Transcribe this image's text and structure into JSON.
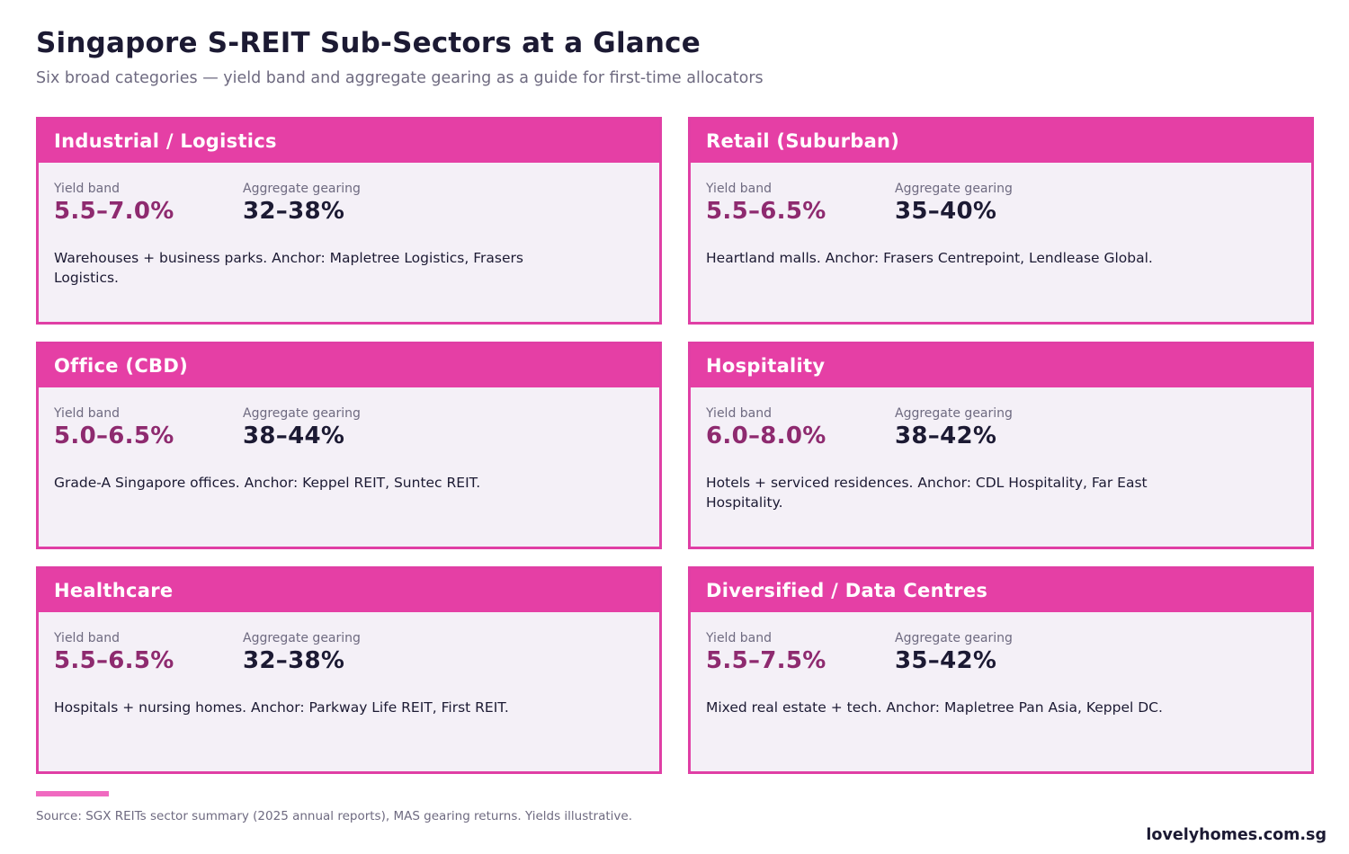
{
  "header": {
    "title": "Singapore S-REIT Sub-Sectors at a Glance",
    "subtitle": "Six broad categories — yield band and aggregate gearing as a guide for first-time allocators"
  },
  "labels": {
    "yield": "Yield band",
    "gearing": "Aggregate gearing"
  },
  "sectors": [
    {
      "name": "Industrial / Logistics",
      "yield": "5.5–7.0%",
      "gearing": "32–38%",
      "description": "Warehouses + business parks. Anchor: Mapletree Logistics, Frasers Logistics."
    },
    {
      "name": "Retail (Suburban)",
      "yield": "5.5–6.5%",
      "gearing": "35–40%",
      "description": "Heartland malls. Anchor: Frasers Centrepoint, Lendlease Global."
    },
    {
      "name": "Office (CBD)",
      "yield": "5.0–6.5%",
      "gearing": "38–44%",
      "description": "Grade-A Singapore offices. Anchor: Keppel REIT, Suntec REIT."
    },
    {
      "name": "Hospitality",
      "yield": "6.0–8.0%",
      "gearing": "38–42%",
      "description": "Hotels + serviced residences. Anchor: CDL Hospitality, Far East Hospitality."
    },
    {
      "name": "Healthcare",
      "yield": "5.5–6.5%",
      "gearing": "32–38%",
      "description": "Hospitals + nursing homes. Anchor: Parkway Life REIT, First REIT."
    },
    {
      "name": "Diversified / Data Centres",
      "yield": "5.5–7.5%",
      "gearing": "35–42%",
      "description": "Mixed real estate + tech. Anchor: Mapletree Pan Asia, Keppel DC."
    }
  ],
  "footer": {
    "source": "Source: SGX REITs sector summary (2025 annual reports), MAS gearing returns. Yields illustrative.",
    "brand": "lovelyhomes.com.sg"
  },
  "colors": {
    "accent": "#e53fa5",
    "yield_value": "#8e2a6f",
    "card_bg": "#f4f0f7"
  }
}
